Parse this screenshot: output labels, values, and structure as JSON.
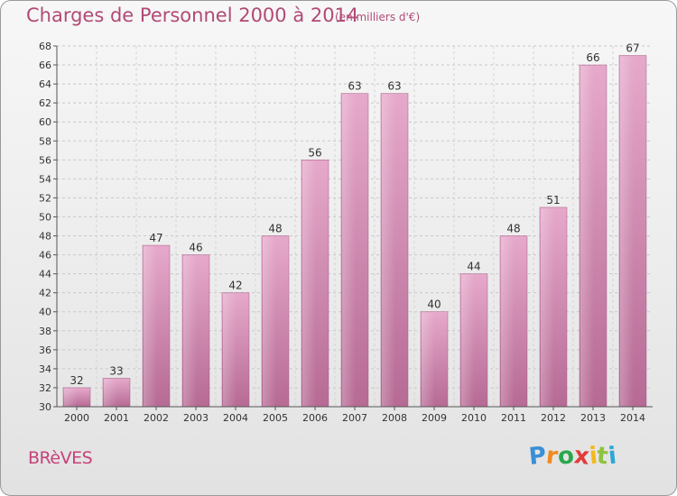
{
  "title": "Charges de Personnel 2000 à 2014",
  "unit": "(en milliers d'€)",
  "commune": "BRèVES",
  "brand": {
    "letters": [
      "P",
      "r",
      "o",
      "x",
      "i",
      "t",
      "i"
    ],
    "colors": [
      "#3b8fd6",
      "#f08a1c",
      "#2aa84a",
      "#e23b3b",
      "#f3b81f",
      "#8fc241",
      "#2aa8d6"
    ]
  },
  "chart_data": {
    "type": "bar",
    "title": "Charges de Personnel 2000 à 2014",
    "xlabel": "",
    "ylabel": "",
    "categories": [
      "2000",
      "2001",
      "2002",
      "2003",
      "2004",
      "2005",
      "2006",
      "2007",
      "2008",
      "2009",
      "2010",
      "2011",
      "2012",
      "2013",
      "2014"
    ],
    "values": [
      32,
      33,
      47,
      46,
      42,
      48,
      56,
      63,
      63,
      40,
      44,
      48,
      51,
      66,
      67
    ],
    "ylim": [
      30,
      68
    ],
    "yticks": [
      30,
      32,
      34,
      36,
      38,
      40,
      42,
      44,
      46,
      48,
      50,
      52,
      54,
      56,
      58,
      60,
      62,
      64,
      66,
      68
    ],
    "grid": true,
    "bar_color": "#d98fb8"
  }
}
